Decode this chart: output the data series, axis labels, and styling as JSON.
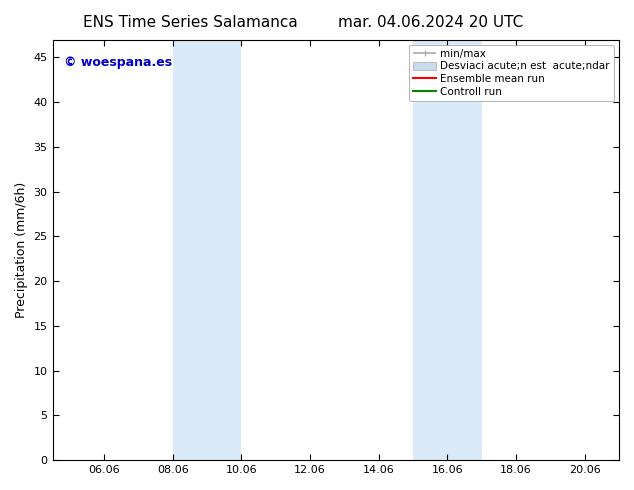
{
  "title_left": "ENS Time Series Salamanca",
  "title_right": "mar. 04.06.2024 20 UTC",
  "ylabel": "Precipitation (mm/6h)",
  "watermark": "© woespana.es",
  "watermark_color": "#0000cc",
  "background_color": "#ffffff",
  "plot_bg_color": "#ffffff",
  "shaded_regions": [
    {
      "x_start": 8.0,
      "x_end": 10.0,
      "color": "#daeaf8"
    },
    {
      "x_start": 15.0,
      "x_end": 17.0,
      "color": "#daeaf8"
    }
  ],
  "xlim": [
    4.5,
    21.0
  ],
  "ylim": [
    0,
    47
  ],
  "xtick_labels": [
    "06.06",
    "08.06",
    "10.06",
    "12.06",
    "14.06",
    "16.06",
    "18.06",
    "20.06"
  ],
  "xtick_positions": [
    6,
    8,
    10,
    12,
    14,
    16,
    18,
    20
  ],
  "ytick_positions": [
    0,
    5,
    10,
    15,
    20,
    25,
    30,
    35,
    40,
    45
  ],
  "legend_labels": [
    "min/max",
    "Desviaci acute;n est  acute;ndar",
    "Ensemble mean run",
    "Controll run"
  ],
  "legend_colors": [
    "#aaaaaa",
    "#c8dcee",
    "#ff0000",
    "#008800"
  ],
  "title_fontsize": 11,
  "axis_fontsize": 9,
  "tick_fontsize": 8,
  "legend_fontsize": 7.5
}
